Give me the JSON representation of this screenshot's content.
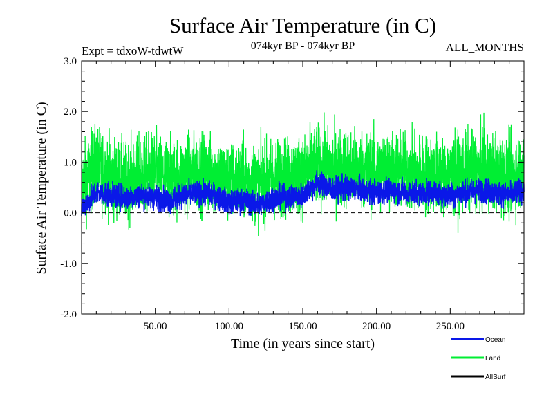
{
  "chart_data": {
    "type": "line",
    "title": "Surface Air Temperature (in C)",
    "subtitle_left": "Expt = tdxoW-tdwtW",
    "subtitle_center": "074kyr BP - 074kyr BP",
    "subtitle_right": "ALL_MONTHS",
    "xlabel": "Time (in years since start)",
    "ylabel": "Surface Air Temperature (in C)",
    "xlim": [
      0,
      300
    ],
    "ylim": [
      -2.0,
      3.0
    ],
    "xticks": [
      50,
      100,
      150,
      200,
      250
    ],
    "xtick_labels": [
      "50.00",
      "100.00",
      "150.00",
      "200.00",
      "250.00"
    ],
    "yticks": [
      -2.0,
      -1.0,
      0.0,
      1.0,
      2.0,
      3.0
    ],
    "ytick_labels": [
      "-2.0",
      "-1.0",
      "0.0",
      "1.0",
      "2.0",
      "3.0"
    ],
    "zero_line": "dashed",
    "legend_position": "bottom-right",
    "series": [
      {
        "name": "Land",
        "color": "#00ee33",
        "x": [
          0,
          10,
          20,
          30,
          40,
          50,
          60,
          70,
          80,
          90,
          100,
          110,
          120,
          130,
          140,
          150,
          160,
          170,
          180,
          190,
          200,
          210,
          220,
          230,
          240,
          250,
          260,
          270,
          280,
          290,
          300
        ],
        "values": [
          0.55,
          0.95,
          0.7,
          0.6,
          0.75,
          0.8,
          0.65,
          0.75,
          0.8,
          0.75,
          0.6,
          0.65,
          0.55,
          0.7,
          0.7,
          0.75,
          0.95,
          0.85,
          0.9,
          0.85,
          0.8,
          0.85,
          0.8,
          0.75,
          0.75,
          0.7,
          0.8,
          0.85,
          0.8,
          0.7,
          0.85
        ]
      },
      {
        "name": "Ocean",
        "color": "#0a18e8",
        "x": [
          0,
          10,
          20,
          30,
          40,
          50,
          60,
          70,
          80,
          90,
          100,
          110,
          120,
          130,
          140,
          150,
          160,
          170,
          180,
          190,
          200,
          210,
          220,
          230,
          240,
          250,
          260,
          270,
          280,
          290,
          300
        ],
        "values": [
          0.1,
          0.4,
          0.35,
          0.3,
          0.35,
          0.3,
          0.25,
          0.35,
          0.4,
          0.35,
          0.2,
          0.25,
          0.15,
          0.3,
          0.3,
          0.35,
          0.6,
          0.45,
          0.5,
          0.45,
          0.4,
          0.45,
          0.4,
          0.4,
          0.4,
          0.35,
          0.4,
          0.45,
          0.4,
          0.35,
          0.45
        ]
      },
      {
        "name": "AllSurf",
        "color": "#000000",
        "x": [],
        "values": []
      }
    ]
  }
}
